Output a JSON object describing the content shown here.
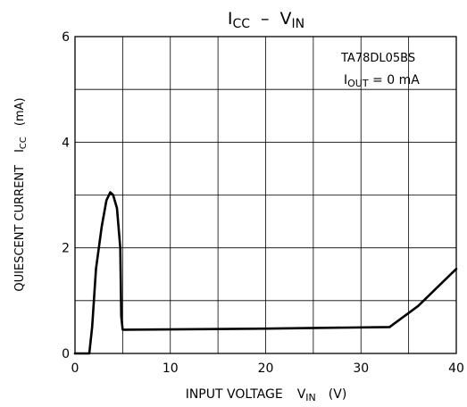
{
  "chart_data": {
    "type": "line",
    "title": {
      "main": "I",
      "main_sub": "CC",
      "sep": "–",
      "x": "V",
      "x_sub": "IN"
    },
    "xlabel": {
      "text": "INPUT VOLTAGE",
      "var": "V",
      "var_sub": "IN",
      "unit": "(V)"
    },
    "ylabel": {
      "text": "QUIESCENT CURRENT",
      "var": "I",
      "var_sub": "CC",
      "unit": "(mA)"
    },
    "xlim": [
      0,
      40
    ],
    "ylim": [
      0,
      6
    ],
    "x_ticks": [
      0,
      10,
      20,
      30,
      40
    ],
    "y_ticks": [
      0,
      2,
      4,
      6
    ],
    "x_grid": [
      0,
      5,
      10,
      15,
      20,
      25,
      30,
      35,
      40
    ],
    "y_grid": [
      0,
      1,
      2,
      3,
      4,
      5,
      6
    ],
    "grid": true,
    "annotations": {
      "line1": "TA78DL05BS",
      "line2_var": "I",
      "line2_sub": "OUT",
      "line2_rest": " = 0 mA"
    },
    "series": [
      {
        "x": [
          0,
          1.5,
          1.8,
          2.2,
          2.8,
          3.3,
          3.7,
          4.0,
          4.4,
          4.75,
          4.85,
          5.0,
          20,
          33,
          36,
          40
        ],
        "y": [
          0,
          0,
          0.5,
          1.6,
          2.4,
          2.9,
          3.05,
          3.0,
          2.75,
          2.0,
          0.7,
          0.45,
          0.47,
          0.5,
          0.9,
          1.6
        ]
      }
    ]
  }
}
